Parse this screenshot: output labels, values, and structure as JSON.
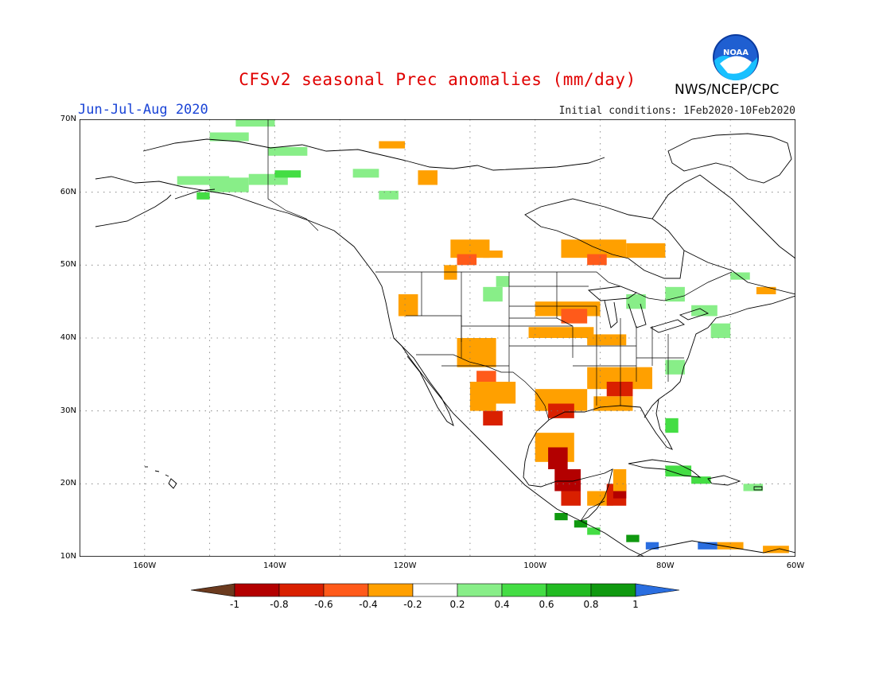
{
  "header": {
    "title": "CFSv2 seasonal Prec anomalies (mm/day)",
    "season": "Jun-Jul-Aug 2020",
    "initial_conditions": "Initial conditions: 1Feb2020-10Feb2020",
    "agency": "NWS/NCEP/CPC",
    "logo_text": "NOAA"
  },
  "map": {
    "lon_range": [
      -170,
      -60
    ],
    "lat_range": [
      10,
      70
    ],
    "lon_ticks": [
      "160W",
      "140W",
      "120W",
      "100W",
      "80W",
      "60W"
    ],
    "lat_ticks": [
      "10N",
      "20N",
      "30N",
      "40N",
      "50N",
      "60N",
      "70N"
    ],
    "grid": "dotted"
  },
  "legend": {
    "ticks": [
      "-1",
      "-0.8",
      "-0.6",
      "-0.4",
      "-0.2",
      "0.2",
      "0.4",
      "0.6",
      "0.8",
      "1"
    ],
    "colors": [
      "#6b3a1e",
      "#b30000",
      "#d92000",
      "#ff5a1a",
      "#ffa000",
      "#ffffff",
      "#88ee88",
      "#44dd44",
      "#22bb22",
      "#109910",
      "#2a6ee0"
    ]
  }
}
